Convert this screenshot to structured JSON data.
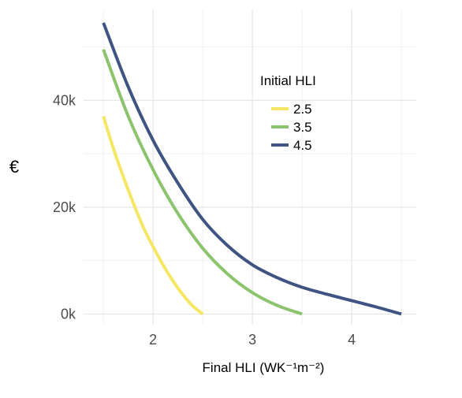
{
  "chart_data": {
    "type": "line",
    "xlabel": "Final HLI  (WK⁻¹m⁻²)",
    "ylabel": "€",
    "xlim": [
      1.3,
      4.65
    ],
    "ylim": [
      -2000,
      57000
    ],
    "x_ticks": [
      2,
      3,
      4
    ],
    "x_tick_labels": [
      "2",
      "3",
      "4"
    ],
    "y_ticks": [
      0,
      20000,
      40000
    ],
    "y_tick_labels": [
      "0k",
      "20k",
      "40k"
    ],
    "grid": true,
    "legend": {
      "title": "Initial HLI",
      "placement": "top-right"
    },
    "series": [
      {
        "name": "2.5",
        "color": "#f5e663",
        "x": [
          1.5,
          1.6,
          1.7,
          1.8,
          1.9,
          2.0,
          2.1,
          2.2,
          2.3,
          2.4,
          2.5
        ],
        "y": [
          37000,
          31000,
          25700,
          20800,
          16300,
          12600,
          9200,
          6200,
          3600,
          1500,
          0
        ]
      },
      {
        "name": "3.5",
        "color": "#8cc46e",
        "x": [
          1.5,
          1.75,
          2.0,
          2.25,
          2.5,
          2.75,
          3.0,
          3.25,
          3.5
        ],
        "y": [
          49500,
          37000,
          27000,
          18800,
          12300,
          7500,
          4000,
          1600,
          0
        ]
      },
      {
        "name": "4.5",
        "color": "#3f5482",
        "x": [
          1.5,
          1.75,
          2.0,
          2.25,
          2.5,
          2.75,
          3.0,
          3.25,
          3.5,
          3.75,
          4.0,
          4.25,
          4.5
        ],
        "y": [
          54500,
          42500,
          32500,
          24500,
          17700,
          12800,
          9200,
          6800,
          5000,
          3700,
          2500,
          1300,
          0
        ]
      }
    ]
  }
}
